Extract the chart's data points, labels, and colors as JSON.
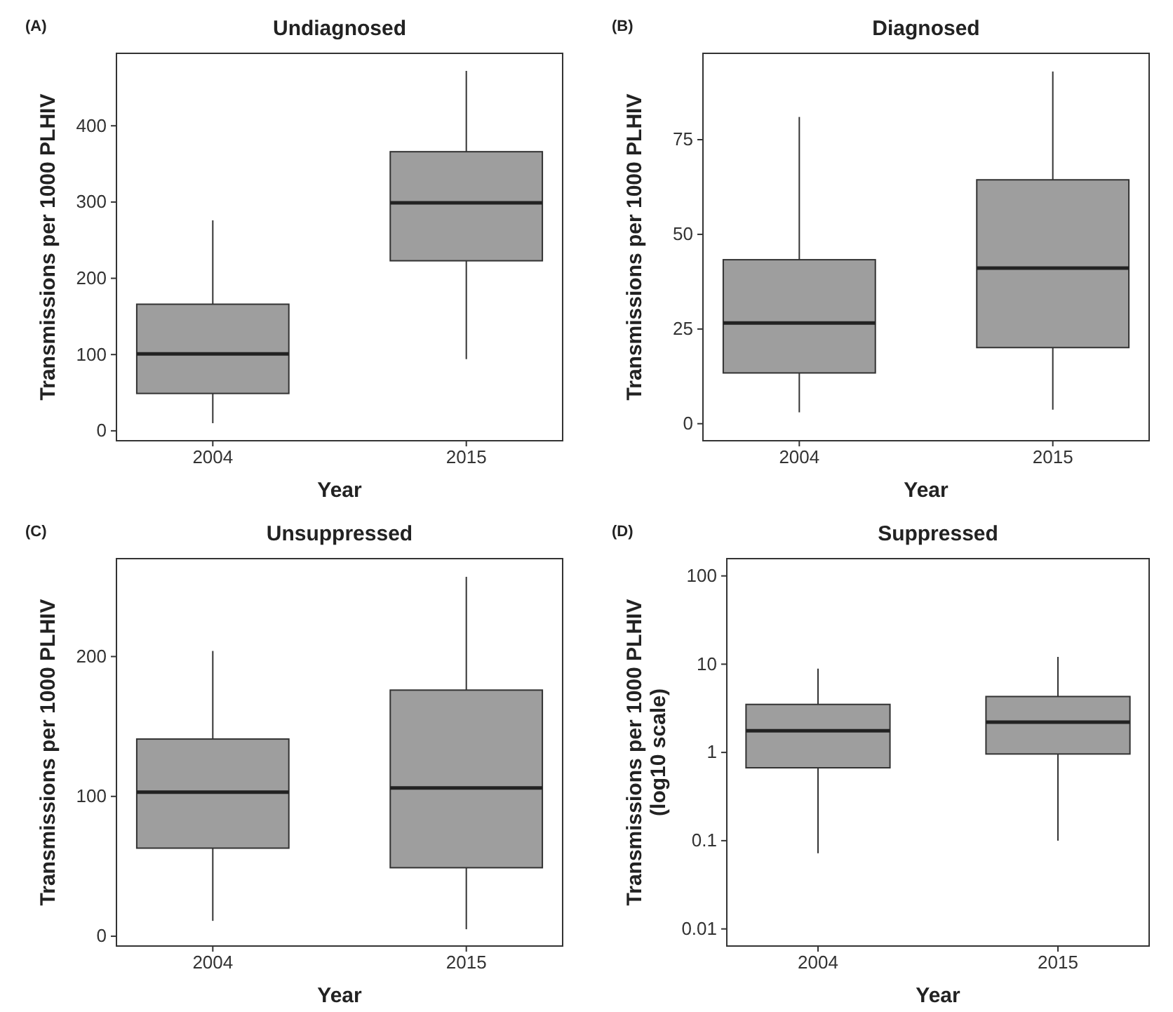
{
  "chart_data": [
    {
      "type": "box",
      "title": "Undiagnosed",
      "xlabel": "Year",
      "ylabel": "Transmissions per 1000 PLHIV",
      "annotations": [
        "(A)"
      ],
      "categories": [
        "2004",
        "2015"
      ],
      "color": "#9e9e9e",
      "ylim": [
        -13,
        495
      ],
      "yticks": [
        0,
        100,
        200,
        300,
        400
      ],
      "boxes": [
        {
          "low": 10,
          "q1": 49,
          "median": 101,
          "q3": 166,
          "high": 276
        },
        {
          "low": 94,
          "q1": 223,
          "median": 299,
          "q3": 366,
          "high": 472
        }
      ]
    },
    {
      "type": "box",
      "title": "Diagnosed",
      "xlabel": "Year",
      "ylabel": "Transmissions per 1000 PLHIV",
      "annotations": [
        "(B)"
      ],
      "categories": [
        "2004",
        "2015"
      ],
      "color": "#9e9e9e",
      "ylim": [
        -4.5,
        97.8
      ],
      "yticks": [
        0,
        25,
        50,
        75
      ],
      "boxes": [
        {
          "low": 3,
          "q1": 13.4,
          "median": 26.6,
          "q3": 43.3,
          "high": 81
        },
        {
          "low": 3.7,
          "q1": 20.1,
          "median": 41.1,
          "q3": 64.4,
          "high": 93
        }
      ]
    },
    {
      "type": "box",
      "title": "Unsuppressed",
      "xlabel": "Year",
      "ylabel": "Transmissions per 1000 PLHIV",
      "annotations": [
        "(C)"
      ],
      "categories": [
        "2004",
        "2015"
      ],
      "color": "#9e9e9e",
      "ylim": [
        -7,
        270
      ],
      "yticks": [
        0,
        100,
        200
      ],
      "boxes": [
        {
          "low": 11,
          "q1": 63,
          "median": 103,
          "q3": 141,
          "high": 204
        },
        {
          "low": 5,
          "q1": 49,
          "median": 106,
          "q3": 176,
          "high": 257
        }
      ]
    },
    {
      "type": "box",
      "title": "Suppressed",
      "xlabel": "Year",
      "ylabel": "Transmissions per 1000 PLHIV\n(log10 scale)",
      "annotations": [
        "(D)"
      ],
      "categories": [
        "2004",
        "2015"
      ],
      "color": "#9e9e9e",
      "log": true,
      "ylim": [
        0.0064,
        157
      ],
      "yticks": [
        0.01,
        0.1,
        1,
        10,
        100
      ],
      "boxes": [
        {
          "low": 0.072,
          "q1": 0.67,
          "median": 1.76,
          "q3": 3.5,
          "high": 8.9
        },
        {
          "low": 0.1,
          "q1": 0.96,
          "median": 2.2,
          "q3": 4.3,
          "high": 12.1
        }
      ]
    }
  ]
}
